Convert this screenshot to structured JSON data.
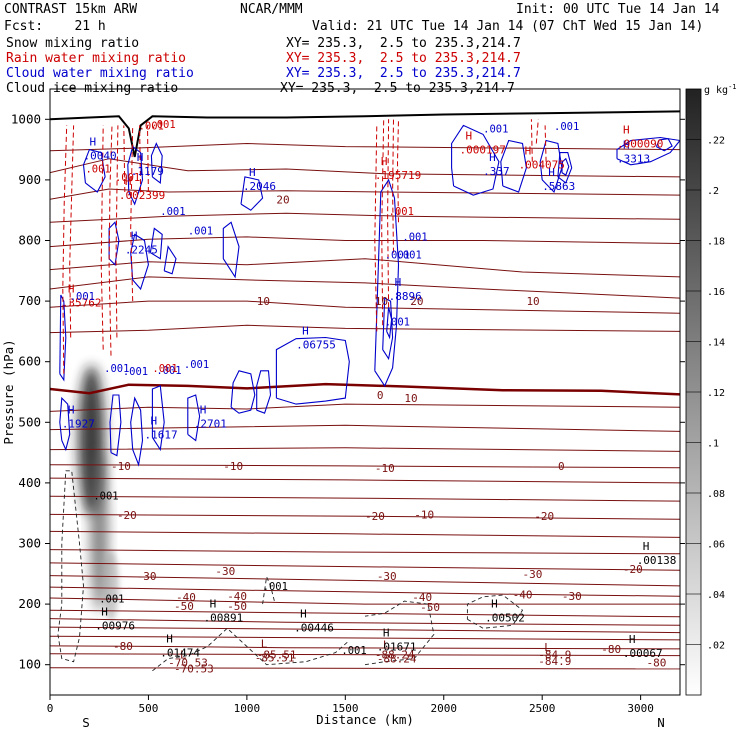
{
  "header": {
    "model": "CONTRAST 15km ARW",
    "org": "NCAR/MMM",
    "init": "Init: 00 UTC Tue 14 Jan 14",
    "fcst": "Fcst:    21 h",
    "valid": "Valid: 21 UTC Tue 14 Jan 14 (07 ChT Wed 15 Jan 14)",
    "legend": [
      {
        "label": "Snow mixing ratio",
        "xy": "XY= 235.3,  2.5 to 235.3,214.7",
        "color": "#000000"
      },
      {
        "label": "Rain water mixing ratio",
        "xy": "XY= 235.3,  2.5 to 235.3,214.7",
        "color": "#cc0000"
      },
      {
        "label": "Cloud water mixing ratio",
        "xy": "XY= 235.3,  2.5 to 235.3,214.7",
        "color": "#0000cc"
      },
      {
        "label": "Cloud ice mixing ratio",
        "xy": "XY= 235.3,  2.5 to 235.3,214.7",
        "color": "#000000"
      }
    ]
  },
  "chart_data": {
    "type": "heatmap",
    "xlabel": "Distance (km)",
    "ylabel": "Pressure (hPa)",
    "xlim": [
      0,
      3200
    ],
    "ylim": [
      1050,
      50
    ],
    "xticks": [
      0,
      500,
      1000,
      1500,
      2000,
      2500,
      3000
    ],
    "yticks": [
      100,
      200,
      300,
      400,
      500,
      600,
      700,
      800,
      900,
      1000
    ],
    "x_end_labels": {
      "left": "S",
      "right": "N"
    },
    "colorbar": {
      "unit": "g kg",
      "unit_exp": "-1",
      "ticks": [
        ".02",
        ".04",
        ".06",
        ".08",
        ".1",
        ".12",
        ".14",
        ".16",
        ".18",
        ".2",
        ".22"
      ]
    },
    "temperature_labels": [
      "-80",
      "-70.53",
      "-85.51",
      "-88.24",
      "-84.9",
      "-80",
      "-80",
      "-50",
      "-50",
      "-50",
      "-40",
      "-40",
      "-40",
      "-40",
      "-30",
      "-30",
      "-30",
      "-30",
      "-30",
      "-20",
      "-20",
      "-20",
      "-20",
      "-10",
      "-10",
      "-10",
      "-10",
      "0",
      "0",
      "10",
      "10",
      "10",
      "10",
      "20",
      "20"
    ],
    "extrema_labels": [
      {
        "tag": "L",
        "value": "-70.53",
        "series": "temperature"
      },
      {
        "tag": "L",
        "value": "-85.51",
        "series": "temperature"
      },
      {
        "tag": "L",
        "value": "-88.24",
        "series": "temperature"
      },
      {
        "tag": "L",
        "value": "-84.9",
        "series": "temperature"
      },
      {
        "tag": "H",
        "value": ".01474",
        "series": "ice"
      },
      {
        "tag": "H",
        "value": ".01671",
        "series": "ice"
      },
      {
        "tag": "H",
        "value": ".00067",
        "series": "ice"
      },
      {
        "tag": "H",
        "value": ".00976",
        "series": "ice"
      },
      {
        "tag": "H",
        "value": ".00891",
        "series": "ice"
      },
      {
        "tag": "H",
        "value": ".00446",
        "series": "ice"
      },
      {
        "tag": "H",
        "value": ".00502",
        "series": "ice"
      },
      {
        "tag": "H",
        "value": ".00138",
        "series": "ice"
      },
      {
        "tag": "H",
        "value": ".1617",
        "series": "cloud"
      },
      {
        "tag": "H",
        "value": ".1927",
        "series": "cloud"
      },
      {
        "tag": "H",
        "value": ".2701",
        "series": "cloud"
      },
      {
        "tag": "H",
        "value": ".06755",
        "series": "cloud"
      },
      {
        "tag": "H",
        "value": ".8896",
        "series": "cloud"
      },
      {
        "tag": "H",
        "value": ".2245",
        "series": "cloud"
      },
      {
        "tag": "H",
        "value": ".2046",
        "series": "cloud"
      },
      {
        "tag": "H",
        "value": ".1179",
        "series": "cloud"
      },
      {
        "tag": "H",
        "value": ".0040",
        "series": "cloud"
      },
      {
        "tag": "H",
        "value": ".337",
        "series": "cloud"
      },
      {
        "tag": "H",
        "value": ".5863",
        "series": "cloud"
      },
      {
        "tag": "H",
        "value": ".3313",
        "series": "cloud"
      },
      {
        "tag": "H",
        "value": ".35762",
        "series": "rain"
      },
      {
        "tag": "H",
        "value": ".002399",
        "series": "rain"
      },
      {
        "tag": "H",
        "value": ".195719",
        "series": "rain"
      },
      {
        "tag": "H",
        "value": ".000197",
        "series": "rain"
      },
      {
        "tag": "H",
        "value": ".004075",
        "series": "rain"
      },
      {
        "tag": "H",
        "value": ".000090",
        "series": "rain"
      }
    ],
    "minor_labels": [
      ".001",
      ".001",
      ".001",
      ".001",
      ".001",
      ".001",
      ".001",
      ".001",
      ".001",
      ".001",
      ".001",
      ".001",
      ".001",
      ".001",
      ".001",
      ".001",
      ".001",
      ".001",
      ".001",
      ".001",
      ".001",
      ".001",
      ".001"
    ]
  }
}
